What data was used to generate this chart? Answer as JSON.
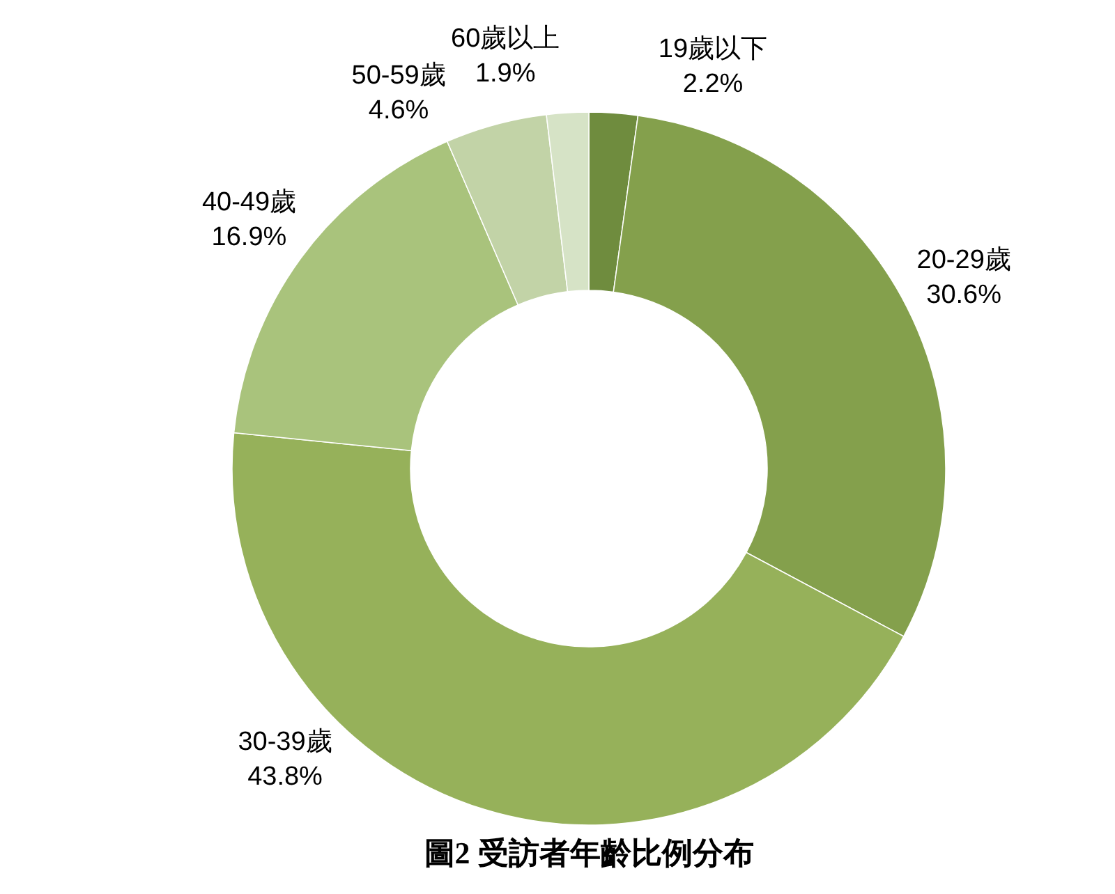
{
  "chart_data": {
    "type": "donut",
    "title": "圖2 受訪者年齡比例分布",
    "categories": [
      "19歲以下",
      "20-29歲",
      "30-39歲",
      "40-49歲",
      "50-59歲",
      "60歲以上"
    ],
    "values": [
      2.2,
      30.6,
      43.8,
      16.9,
      4.6,
      1.9
    ],
    "colors": [
      "#6f8c3e",
      "#84a04c",
      "#96b15a",
      "#a9c37c",
      "#c2d3a7",
      "#d6e3c6"
    ],
    "value_labels": [
      "2.2%",
      "30.6%",
      "43.8%",
      "16.9%",
      "4.6%",
      "1.9%"
    ]
  }
}
